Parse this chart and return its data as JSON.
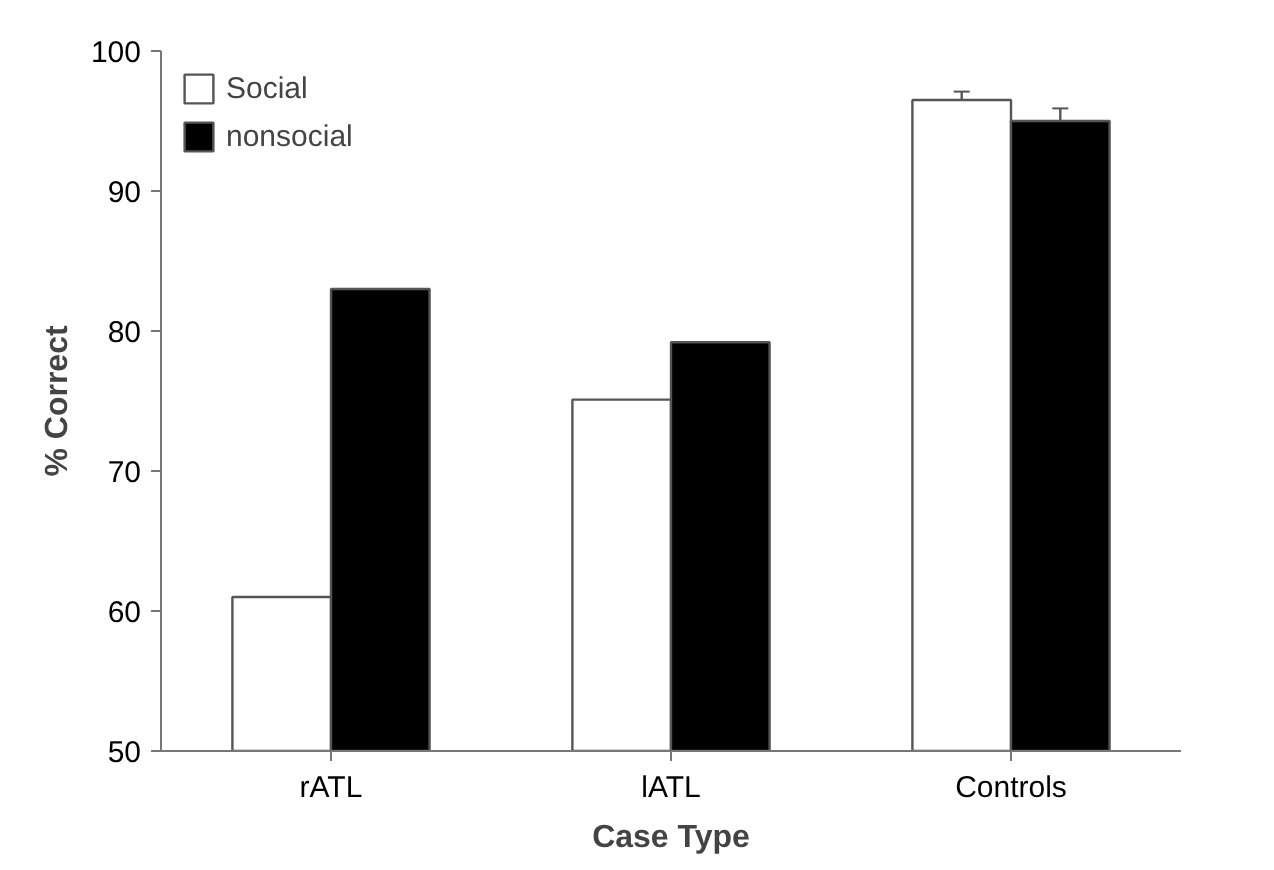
{
  "chart_data": {
    "type": "bar",
    "xlabel": "Case Type",
    "ylabel": "% Correct",
    "categories": [
      "rATL",
      "lATL",
      "Controls"
    ],
    "series": [
      {
        "name": "Social",
        "color": "#ffffff",
        "values": [
          61,
          75.1,
          96.5
        ],
        "errors": [
          null,
          null,
          0.6
        ]
      },
      {
        "name": "nonsocial",
        "color": "#000000",
        "values": [
          83,
          79.2,
          95
        ],
        "errors": [
          null,
          null,
          0.9
        ]
      }
    ],
    "ylim": [
      50,
      100
    ],
    "yticks": [
      50,
      60,
      70,
      80,
      90,
      100
    ],
    "grid": false,
    "legend": "top left"
  }
}
